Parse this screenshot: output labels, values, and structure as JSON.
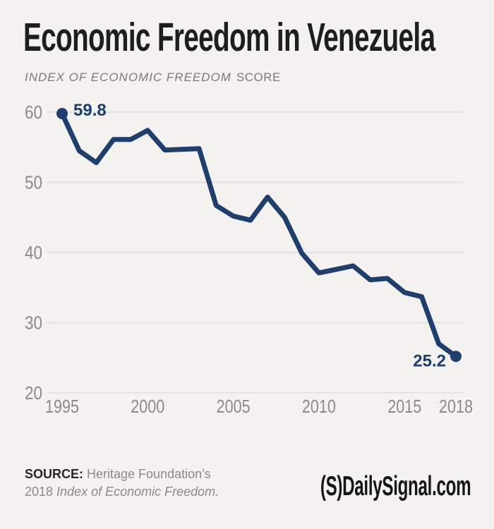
{
  "header": {
    "title": "Economic Freedom in Venezuela",
    "subtitle_italic": "INDEX OF ECONOMIC FREEDOM",
    "subtitle_regular": "SCORE"
  },
  "chart_data": {
    "type": "line",
    "title": "Economic Freedom in Venezuela",
    "subtitle": "INDEX OF ECONOMIC FREEDOM SCORE",
    "series_name": "Index of Economic Freedom score",
    "x": [
      1995,
      1996,
      1997,
      1998,
      1999,
      2000,
      2001,
      2002,
      2003,
      2004,
      2005,
      2006,
      2007,
      2008,
      2009,
      2010,
      2011,
      2012,
      2013,
      2014,
      2015,
      2016,
      2017,
      2018
    ],
    "values": [
      59.8,
      54.5,
      52.8,
      56.1,
      56.1,
      57.4,
      54.6,
      54.7,
      54.8,
      46.7,
      45.2,
      44.6,
      47.9,
      45.0,
      39.9,
      37.1,
      37.6,
      38.1,
      36.1,
      36.3,
      34.3,
      33.7,
      27.0,
      25.2
    ],
    "xlabel": "",
    "ylabel": "Index of Economic Freedom score",
    "ylim": [
      20,
      60
    ],
    "yticks": [
      60,
      50,
      40,
      30,
      20
    ],
    "xticks": [
      1995,
      2000,
      2005,
      2010,
      2015,
      2018
    ],
    "grid": "horizontal",
    "legend": "none",
    "line_color": "#1e3e6e",
    "grid_color": "#e3e2df",
    "bg_color": "#f3f2ef",
    "endpoint_dots": true,
    "annotations": [
      {
        "label": "59.8",
        "x": 1995,
        "y": 59.8,
        "placement": "right"
      },
      {
        "label": "25.2",
        "x": 2018,
        "y": 25.2,
        "placement": "left-below"
      }
    ]
  },
  "footer": {
    "source_label": "SOURCE:",
    "source_text": " Heritage Foundation’s",
    "line2_prefix": "2018 ",
    "line2_title": "Index of Economic Freedom.",
    "logo_mark": "(S)",
    "logo_text": "DailySignal.com"
  }
}
